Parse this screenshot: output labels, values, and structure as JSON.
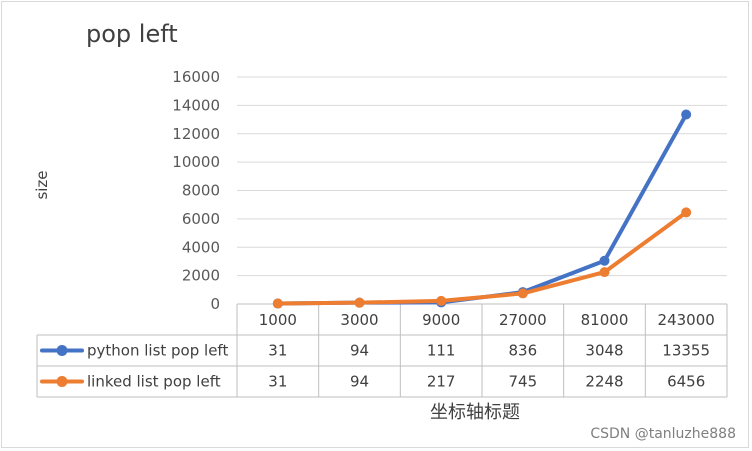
{
  "chart_data": {
    "type": "line",
    "title": "pop left",
    "ylabel": "size",
    "xlabel": "坐标轴标题",
    "categories": [
      "1000",
      "3000",
      "9000",
      "27000",
      "81000",
      "243000"
    ],
    "ylim": [
      0,
      16000
    ],
    "yticks": [
      "0",
      "2000",
      "4000",
      "6000",
      "8000",
      "10000",
      "12000",
      "14000",
      "16000"
    ],
    "grid": true,
    "legend": "data-table",
    "series": [
      {
        "name": "python list pop left",
        "color": "#4472c4",
        "values": [
          31,
          94,
          111,
          836,
          3048,
          13355
        ]
      },
      {
        "name": "linked list pop left",
        "color": "#ed7d31",
        "values": [
          31,
          94,
          217,
          745,
          2248,
          6456
        ]
      }
    ]
  },
  "watermark": "CSDN @tanluzhe888"
}
